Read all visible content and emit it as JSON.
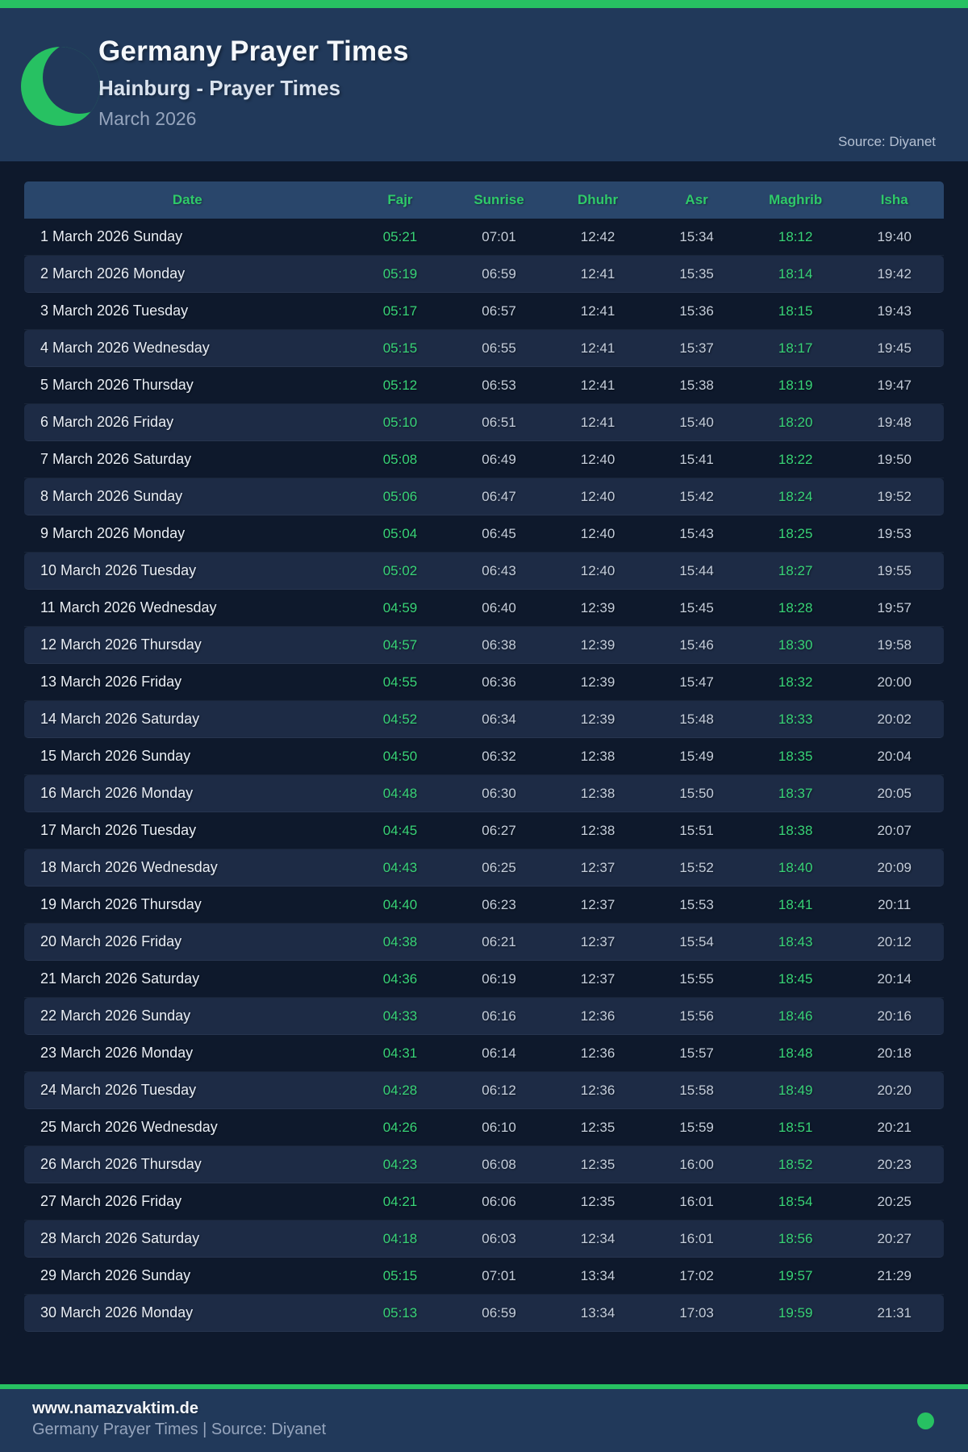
{
  "header": {
    "title": "Germany Prayer Times",
    "subtitle": "Hainburg - Prayer Times",
    "period": "March 2026",
    "source": "Source: Diyanet",
    "icon": "crescent-moon-icon"
  },
  "table": {
    "columns": [
      "Date",
      "Fajr",
      "Sunrise",
      "Dhuhr",
      "Asr",
      "Maghrib",
      "Isha"
    ],
    "rows": [
      {
        "date": "1 March 2026 Sunday",
        "fajr": "05:21",
        "sunrise": "07:01",
        "dhuhr": "12:42",
        "asr": "15:34",
        "maghrib": "18:12",
        "isha": "19:40"
      },
      {
        "date": "2 March 2026 Monday",
        "fajr": "05:19",
        "sunrise": "06:59",
        "dhuhr": "12:41",
        "asr": "15:35",
        "maghrib": "18:14",
        "isha": "19:42"
      },
      {
        "date": "3 March 2026 Tuesday",
        "fajr": "05:17",
        "sunrise": "06:57",
        "dhuhr": "12:41",
        "asr": "15:36",
        "maghrib": "18:15",
        "isha": "19:43"
      },
      {
        "date": "4 March 2026 Wednesday",
        "fajr": "05:15",
        "sunrise": "06:55",
        "dhuhr": "12:41",
        "asr": "15:37",
        "maghrib": "18:17",
        "isha": "19:45"
      },
      {
        "date": "5 March 2026 Thursday",
        "fajr": "05:12",
        "sunrise": "06:53",
        "dhuhr": "12:41",
        "asr": "15:38",
        "maghrib": "18:19",
        "isha": "19:47"
      },
      {
        "date": "6 March 2026 Friday",
        "fajr": "05:10",
        "sunrise": "06:51",
        "dhuhr": "12:41",
        "asr": "15:40",
        "maghrib": "18:20",
        "isha": "19:48"
      },
      {
        "date": "7 March 2026 Saturday",
        "fajr": "05:08",
        "sunrise": "06:49",
        "dhuhr": "12:40",
        "asr": "15:41",
        "maghrib": "18:22",
        "isha": "19:50"
      },
      {
        "date": "8 March 2026 Sunday",
        "fajr": "05:06",
        "sunrise": "06:47",
        "dhuhr": "12:40",
        "asr": "15:42",
        "maghrib": "18:24",
        "isha": "19:52"
      },
      {
        "date": "9 March 2026 Monday",
        "fajr": "05:04",
        "sunrise": "06:45",
        "dhuhr": "12:40",
        "asr": "15:43",
        "maghrib": "18:25",
        "isha": "19:53"
      },
      {
        "date": "10 March 2026 Tuesday",
        "fajr": "05:02",
        "sunrise": "06:43",
        "dhuhr": "12:40",
        "asr": "15:44",
        "maghrib": "18:27",
        "isha": "19:55"
      },
      {
        "date": "11 March 2026 Wednesday",
        "fajr": "04:59",
        "sunrise": "06:40",
        "dhuhr": "12:39",
        "asr": "15:45",
        "maghrib": "18:28",
        "isha": "19:57"
      },
      {
        "date": "12 March 2026 Thursday",
        "fajr": "04:57",
        "sunrise": "06:38",
        "dhuhr": "12:39",
        "asr": "15:46",
        "maghrib": "18:30",
        "isha": "19:58"
      },
      {
        "date": "13 March 2026 Friday",
        "fajr": "04:55",
        "sunrise": "06:36",
        "dhuhr": "12:39",
        "asr": "15:47",
        "maghrib": "18:32",
        "isha": "20:00"
      },
      {
        "date": "14 March 2026 Saturday",
        "fajr": "04:52",
        "sunrise": "06:34",
        "dhuhr": "12:39",
        "asr": "15:48",
        "maghrib": "18:33",
        "isha": "20:02"
      },
      {
        "date": "15 March 2026 Sunday",
        "fajr": "04:50",
        "sunrise": "06:32",
        "dhuhr": "12:38",
        "asr": "15:49",
        "maghrib": "18:35",
        "isha": "20:04"
      },
      {
        "date": "16 March 2026 Monday",
        "fajr": "04:48",
        "sunrise": "06:30",
        "dhuhr": "12:38",
        "asr": "15:50",
        "maghrib": "18:37",
        "isha": "20:05"
      },
      {
        "date": "17 March 2026 Tuesday",
        "fajr": "04:45",
        "sunrise": "06:27",
        "dhuhr": "12:38",
        "asr": "15:51",
        "maghrib": "18:38",
        "isha": "20:07"
      },
      {
        "date": "18 March 2026 Wednesday",
        "fajr": "04:43",
        "sunrise": "06:25",
        "dhuhr": "12:37",
        "asr": "15:52",
        "maghrib": "18:40",
        "isha": "20:09"
      },
      {
        "date": "19 March 2026 Thursday",
        "fajr": "04:40",
        "sunrise": "06:23",
        "dhuhr": "12:37",
        "asr": "15:53",
        "maghrib": "18:41",
        "isha": "20:11"
      },
      {
        "date": "20 March 2026 Friday",
        "fajr": "04:38",
        "sunrise": "06:21",
        "dhuhr": "12:37",
        "asr": "15:54",
        "maghrib": "18:43",
        "isha": "20:12"
      },
      {
        "date": "21 March 2026 Saturday",
        "fajr": "04:36",
        "sunrise": "06:19",
        "dhuhr": "12:37",
        "asr": "15:55",
        "maghrib": "18:45",
        "isha": "20:14"
      },
      {
        "date": "22 March 2026 Sunday",
        "fajr": "04:33",
        "sunrise": "06:16",
        "dhuhr": "12:36",
        "asr": "15:56",
        "maghrib": "18:46",
        "isha": "20:16"
      },
      {
        "date": "23 March 2026 Monday",
        "fajr": "04:31",
        "sunrise": "06:14",
        "dhuhr": "12:36",
        "asr": "15:57",
        "maghrib": "18:48",
        "isha": "20:18"
      },
      {
        "date": "24 March 2026 Tuesday",
        "fajr": "04:28",
        "sunrise": "06:12",
        "dhuhr": "12:36",
        "asr": "15:58",
        "maghrib": "18:49",
        "isha": "20:20"
      },
      {
        "date": "25 March 2026 Wednesday",
        "fajr": "04:26",
        "sunrise": "06:10",
        "dhuhr": "12:35",
        "asr": "15:59",
        "maghrib": "18:51",
        "isha": "20:21"
      },
      {
        "date": "26 March 2026 Thursday",
        "fajr": "04:23",
        "sunrise": "06:08",
        "dhuhr": "12:35",
        "asr": "16:00",
        "maghrib": "18:52",
        "isha": "20:23"
      },
      {
        "date": "27 March 2026 Friday",
        "fajr": "04:21",
        "sunrise": "06:06",
        "dhuhr": "12:35",
        "asr": "16:01",
        "maghrib": "18:54",
        "isha": "20:25"
      },
      {
        "date": "28 March 2026 Saturday",
        "fajr": "04:18",
        "sunrise": "06:03",
        "dhuhr": "12:34",
        "asr": "16:01",
        "maghrib": "18:56",
        "isha": "20:27"
      },
      {
        "date": "29 March 2026 Sunday",
        "fajr": "05:15",
        "sunrise": "07:01",
        "dhuhr": "13:34",
        "asr": "17:02",
        "maghrib": "19:57",
        "isha": "21:29"
      },
      {
        "date": "30 March 2026 Monday",
        "fajr": "05:13",
        "sunrise": "06:59",
        "dhuhr": "13:34",
        "asr": "17:03",
        "maghrib": "19:59",
        "isha": "21:31"
      }
    ]
  },
  "footer": {
    "site": "www.namazvaktim.de",
    "tagline": "Germany Prayer Times | Source: Diyanet",
    "status_icon": "green-dot"
  },
  "colors": {
    "accent_green": "#27c162",
    "header_green_text": "#2fca6a",
    "time_green": "#38d377",
    "header_footer_band": "#21395a",
    "page_background": "#0e192c",
    "alt_row_background": "#1d2b45",
    "table_head_background": "#29466b",
    "date_text": "#e9eef5",
    "time_text": "#c4cdda",
    "muted_text": "#96a5bd"
  }
}
